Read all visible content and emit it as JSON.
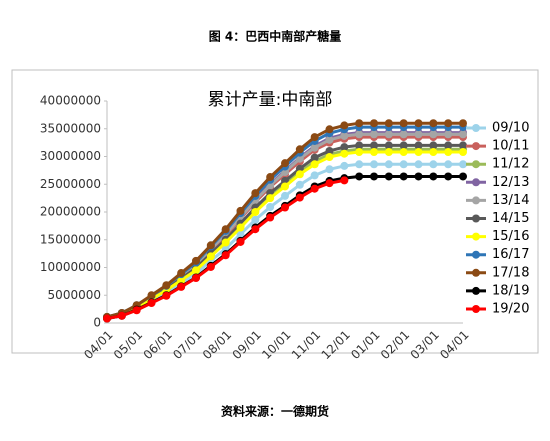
{
  "title": "图 4：巴西中南部产糖量",
  "source": "资料来源：一德期货",
  "chart_data": {
    "type": "line",
    "title": "累计产量:中南部",
    "categories": [
      "04/01",
      null,
      "05/01",
      null,
      "06/01",
      null,
      "07/01",
      null,
      "08/01",
      null,
      "09/01",
      null,
      "10/01",
      null,
      "11/01",
      null,
      "12/01",
      null,
      "01/01",
      null,
      "02/01",
      null,
      "03/01",
      null,
      "04/01"
    ],
    "ylim": [
      0,
      40000000
    ],
    "yticks": [
      0,
      5000000,
      10000000,
      15000000,
      20000000,
      25000000,
      30000000,
      35000000,
      40000000
    ],
    "grid": false,
    "legend": "right",
    "series": [
      {
        "name": "09/10",
        "color": "#9dd3ea",
        "values": [
          900000,
          1400000,
          2600000,
          4000000,
          5400000,
          7200000,
          8900000,
          11200000,
          13400000,
          16000000,
          18600000,
          20900000,
          22900000,
          24900000,
          26600000,
          27700000,
          28300000,
          28600000,
          28600000,
          28600000,
          28600000,
          28600000,
          28600000,
          28600000,
          28600000
        ]
      },
      {
        "name": "10/11",
        "color": "#c9605c",
        "values": [
          1000000,
          1700000,
          3000000,
          4700000,
          6400000,
          8400000,
          10400000,
          13100000,
          15700000,
          18800000,
          21800000,
          24500000,
          26800000,
          29100000,
          31200000,
          32500000,
          33200000,
          33500000,
          33500000,
          33500000,
          33500000,
          33500000,
          33500000,
          33500000,
          33500000
        ]
      },
      {
        "name": "11/12",
        "color": "#9bbb59",
        "values": [
          900000,
          1600000,
          2800000,
          4400000,
          5900000,
          7800000,
          9700000,
          12200000,
          14700000,
          17500000,
          20300000,
          22800000,
          25000000,
          27200000,
          29100000,
          30400000,
          31000000,
          31300000,
          31300000,
          31300000,
          31300000,
          31300000,
          31300000,
          31300000,
          31300000
        ]
      },
      {
        "name": "12/13",
        "color": "#8064a2",
        "values": [
          1000000,
          1700000,
          3100000,
          4800000,
          6500000,
          8600000,
          10600000,
          13400000,
          16100000,
          19200000,
          22300000,
          25000000,
          27400000,
          29800000,
          31900000,
          33300000,
          34000000,
          34300000,
          34300000,
          34300000,
          34300000,
          34300000,
          34300000,
          34300000,
          34300000
        ]
      },
      {
        "name": "13/14",
        "color": "#a5a5a5",
        "values": [
          1000000,
          1700000,
          3100000,
          4800000,
          6500000,
          8500000,
          10500000,
          13300000,
          16000000,
          19000000,
          22100000,
          24800000,
          27200000,
          29600000,
          31600000,
          33000000,
          33700000,
          34000000,
          34000000,
          34000000,
          34000000,
          34000000,
          34000000,
          34000000,
          34000000
        ]
      },
      {
        "name": "14/15",
        "color": "#595959",
        "values": [
          1000000,
          1600000,
          2900000,
          4500000,
          6100000,
          8000000,
          9900000,
          12500000,
          15000000,
          17900000,
          20800000,
          23400000,
          25600000,
          27800000,
          29800000,
          31000000,
          31700000,
          32000000,
          32000000,
          32000000,
          32000000,
          32000000,
          32000000,
          32000000,
          32000000
        ]
      },
      {
        "name": "15/16",
        "color": "#ffff00",
        "values": [
          900000,
          1500000,
          2800000,
          4300000,
          5900000,
          7700000,
          9500000,
          12000000,
          14500000,
          17200000,
          20000000,
          22500000,
          24600000,
          26800000,
          28600000,
          29900000,
          30500000,
          30800000,
          30800000,
          30800000,
          30800000,
          30800000,
          30800000,
          30800000,
          30800000
        ]
      },
      {
        "name": "16/17",
        "color": "#2e75b6",
        "values": [
          1100000,
          1800000,
          3200000,
          4900000,
          6700000,
          8800000,
          10900000,
          13800000,
          16600000,
          19800000,
          22900000,
          25800000,
          28200000,
          30700000,
          32800000,
          34200000,
          34900000,
          35300000,
          35300000,
          35300000,
          35300000,
          35300000,
          35300000,
          35300000,
          35300000
        ]
      },
      {
        "name": "17/18",
        "color": "#8b4a14",
        "values": [
          1100000,
          1800000,
          3200000,
          5000000,
          6800000,
          9000000,
          11200000,
          14000000,
          16900000,
          20200000,
          23400000,
          26300000,
          28800000,
          31300000,
          33500000,
          34900000,
          35600000,
          36000000,
          36000000,
          36000000,
          36000000,
          36000000,
          36000000,
          36000000,
          36000000
        ]
      },
      {
        "name": "18/19",
        "color": "#000000",
        "values": [
          800000,
          1300000,
          2400000,
          3700000,
          5000000,
          6600000,
          8200000,
          10300000,
          12400000,
          14800000,
          17200000,
          19300000,
          21100000,
          23000000,
          24600000,
          25600000,
          26100000,
          26400000,
          26400000,
          26400000,
          26400000,
          26400000,
          26400000,
          26400000,
          26400000
        ]
      },
      {
        "name": "19/20",
        "color": "#ff0000",
        "values": [
          800000,
          1300000,
          2300000,
          3600000,
          4900000,
          6500000,
          8100000,
          10100000,
          12200000,
          14600000,
          16900000,
          19000000,
          20800000,
          22600000,
          24200000,
          25200000,
          25700000,
          null,
          null,
          null,
          null,
          null,
          null,
          null,
          null
        ]
      }
    ]
  }
}
